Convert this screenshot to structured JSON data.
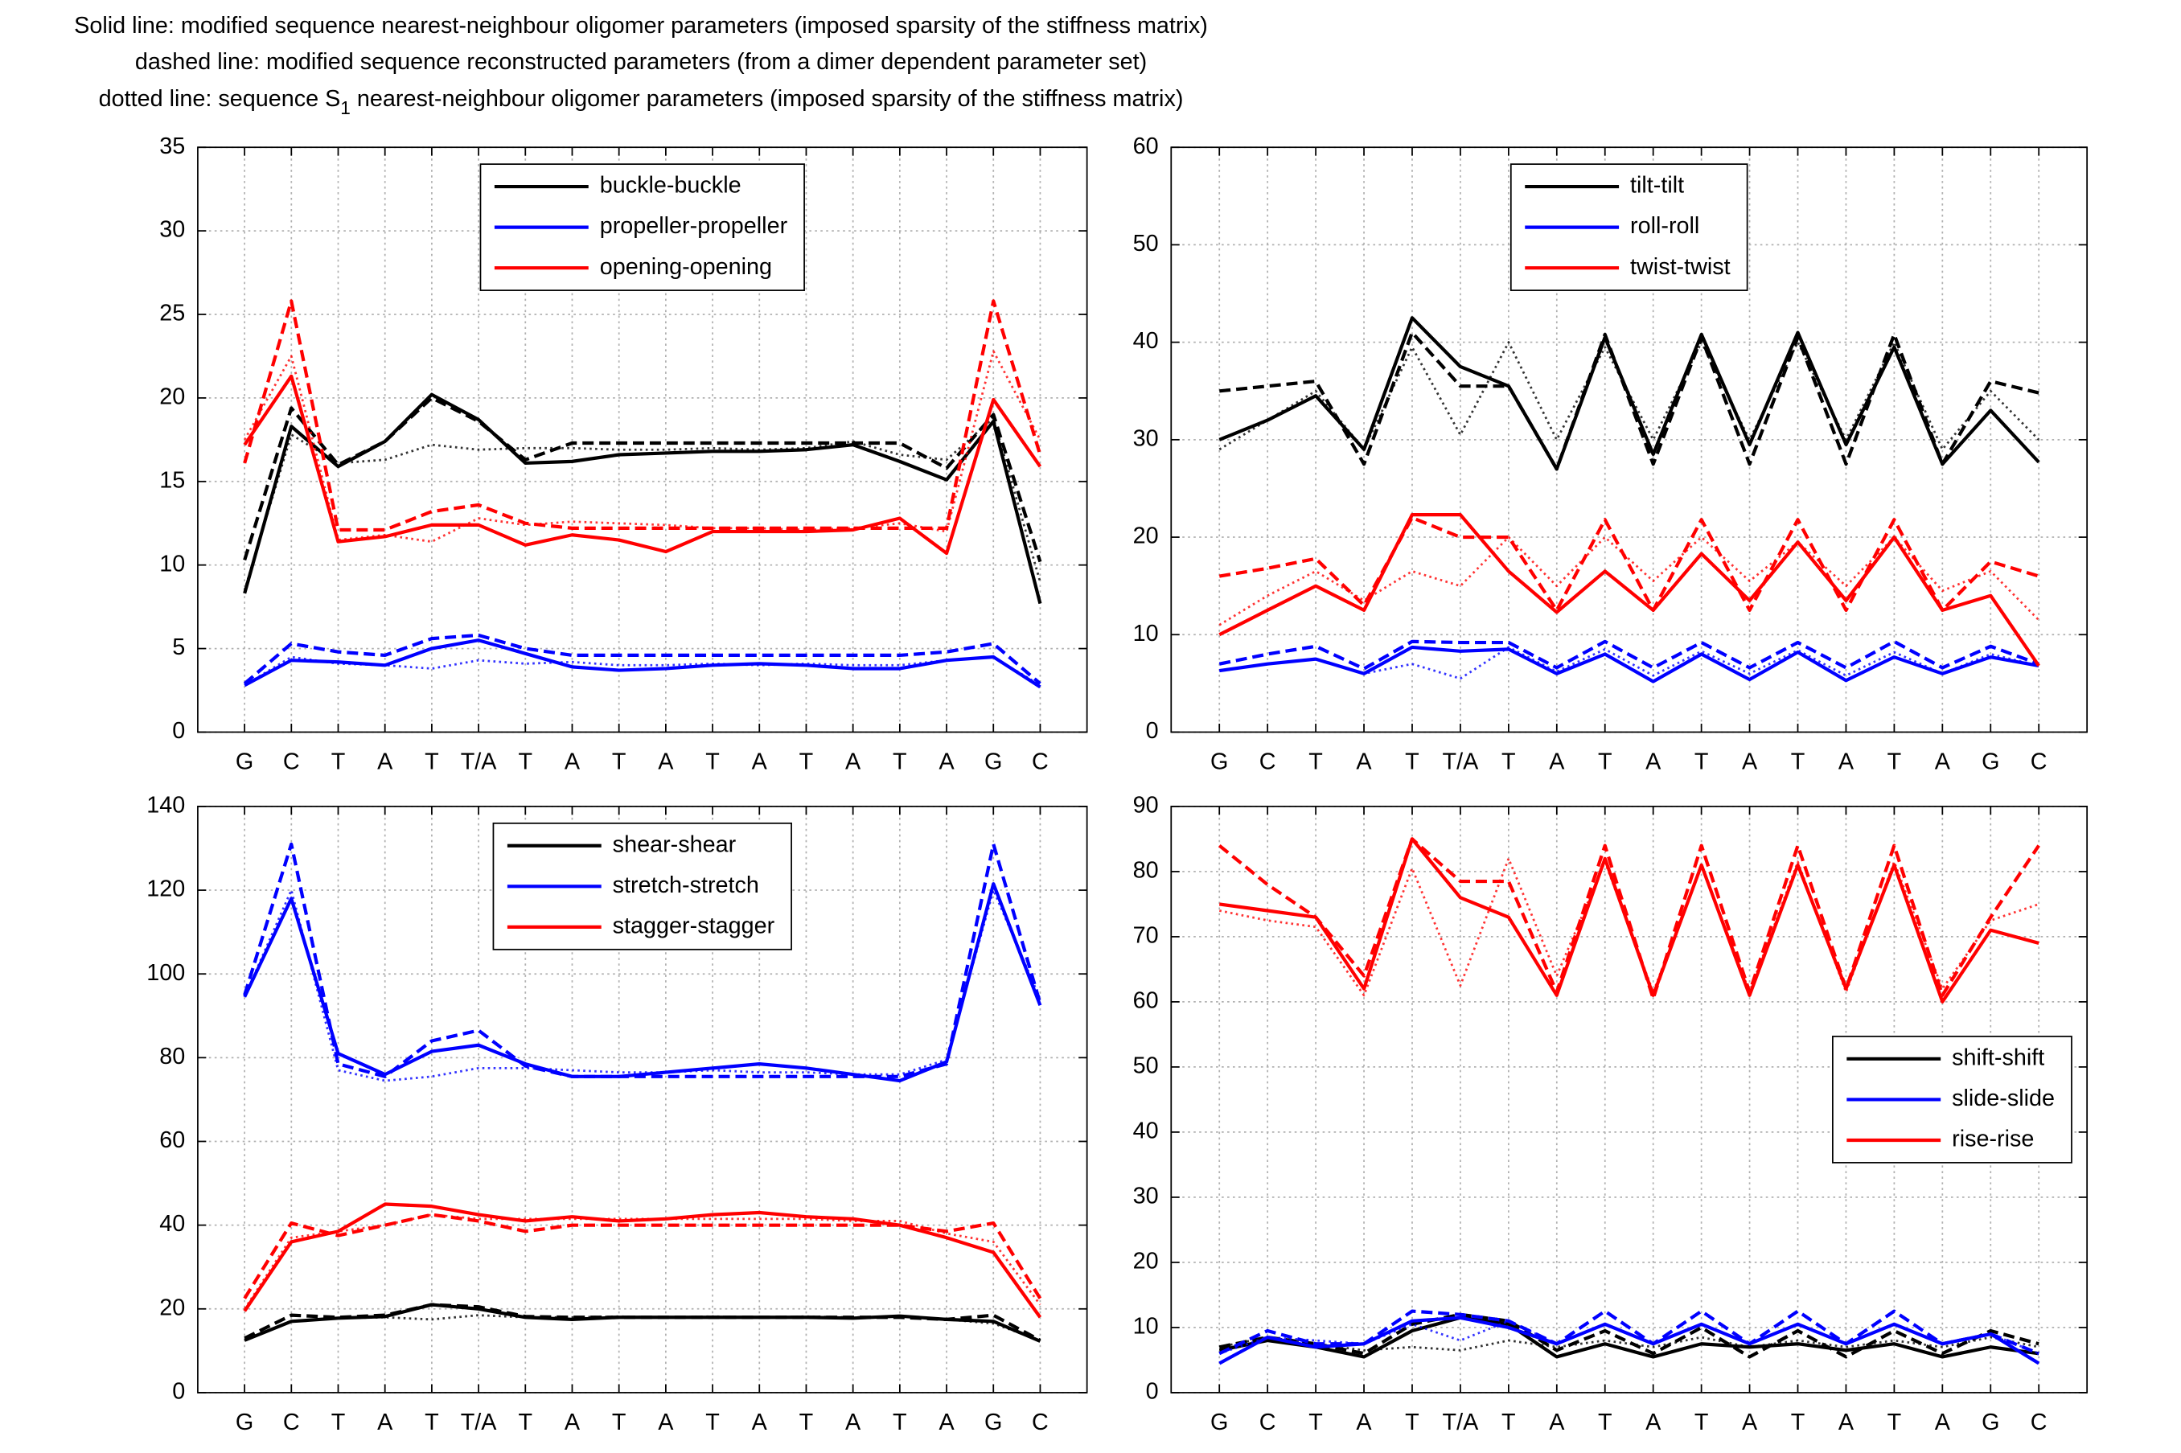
{
  "caption": [
    "Solid line: modified sequence nearest-neighbour oligomer parameters (imposed sparsity of the stiffness matrix)",
    "dashed line: modified sequence reconstructed parameters (from a dimer dependent parameter set)",
    {
      "before": "dotted line: sequence S",
      "subscript": "1",
      "after": " nearest-neighbour oligomer parameters (imposed sparsity of the stiffness matrix)"
    }
  ],
  "chart_data": [
    {
      "type": "line",
      "categories": [
        "G",
        "C",
        "T",
        "A",
        "T",
        "T/A",
        "T",
        "A",
        "T",
        "A",
        "T",
        "A",
        "T",
        "A",
        "T",
        "A",
        "G",
        "C"
      ],
      "ylim": [
        0,
        35
      ],
      "yticks": [
        0,
        5,
        10,
        15,
        20,
        25,
        30,
        35
      ],
      "grid": true,
      "legend": "upper center",
      "series": [
        {
          "name": "buckle-buckle",
          "color": "#000000",
          "values": [
            8.3,
            18.3,
            15.9,
            17.4,
            20.2,
            18.7,
            16.1,
            16.2,
            16.6,
            16.7,
            16.8,
            16.8,
            16.9,
            17.2,
            16.2,
            15.1,
            18.6,
            7.7
          ],
          "dashed_values": [
            10.3,
            19.4,
            16.0,
            17.4,
            20.0,
            18.6,
            16.3,
            17.3,
            17.3,
            17.3,
            17.3,
            17.3,
            17.3,
            17.3,
            17.3,
            15.8,
            19.0,
            10.2
          ],
          "dotted_values": [
            8.5,
            17.8,
            16.1,
            16.3,
            17.2,
            16.9,
            17.0,
            17.0,
            16.9,
            16.9,
            17.0,
            16.9,
            17.0,
            17.4,
            16.6,
            16.3,
            18.8,
            9.0
          ]
        },
        {
          "name": "propeller-propeller",
          "color": "#0000ff",
          "values": [
            2.8,
            4.3,
            4.2,
            4.0,
            5.0,
            5.5,
            4.7,
            3.9,
            3.7,
            3.8,
            4.0,
            4.1,
            4.0,
            3.8,
            3.8,
            4.3,
            4.5,
            2.7
          ],
          "dashed_values": [
            2.9,
            5.3,
            4.8,
            4.6,
            5.6,
            5.8,
            5.0,
            4.6,
            4.6,
            4.6,
            4.6,
            4.6,
            4.6,
            4.6,
            4.6,
            4.8,
            5.3,
            2.9
          ],
          "dotted_values": [
            2.8,
            4.5,
            4.1,
            4.0,
            3.8,
            4.3,
            4.1,
            4.2,
            4.0,
            4.0,
            4.1,
            4.0,
            4.1,
            4.0,
            4.0,
            4.3,
            4.5,
            2.8
          ]
        },
        {
          "name": "opening-opening",
          "color": "#ff0000",
          "values": [
            17.2,
            21.3,
            11.4,
            11.7,
            12.4,
            12.4,
            11.2,
            11.8,
            11.5,
            10.8,
            12.0,
            12.0,
            12.0,
            12.1,
            12.8,
            10.7,
            19.9,
            15.9
          ],
          "dashed_values": [
            16.1,
            25.8,
            12.1,
            12.1,
            13.2,
            13.6,
            12.5,
            12.2,
            12.2,
            12.2,
            12.2,
            12.2,
            12.2,
            12.2,
            12.2,
            12.2,
            25.8,
            16.6
          ],
          "dotted_values": [
            17.5,
            22.5,
            11.5,
            11.8,
            11.4,
            12.8,
            12.4,
            12.6,
            12.5,
            12.4,
            12.2,
            12.2,
            12.1,
            12.2,
            12.5,
            12.0,
            22.8,
            17.5
          ]
        }
      ]
    },
    {
      "type": "line",
      "categories": [
        "G",
        "C",
        "T",
        "A",
        "T",
        "T/A",
        "T",
        "A",
        "T",
        "A",
        "T",
        "A",
        "T",
        "A",
        "T",
        "A",
        "G",
        "C"
      ],
      "ylim": [
        0,
        60
      ],
      "yticks": [
        0,
        10,
        20,
        30,
        40,
        50,
        60
      ],
      "grid": true,
      "legend": "upper center",
      "series": [
        {
          "name": "tilt-tilt",
          "color": "#000000",
          "values": [
            30,
            32,
            34.5,
            29,
            42.5,
            37.5,
            35.5,
            27,
            40.5,
            28.5,
            40.8,
            29.5,
            41,
            29.5,
            39.5,
            27.5,
            33,
            27.7
          ],
          "dashed_values": [
            35,
            35.5,
            36,
            27.5,
            41,
            35.5,
            35.5,
            27,
            40.8,
            27.5,
            40.5,
            27.5,
            40.5,
            27.5,
            40.8,
            27.5,
            36,
            34.8
          ],
          "dotted_values": [
            29,
            32,
            35,
            29,
            39.5,
            30.5,
            40,
            30,
            39.5,
            30,
            40,
            30,
            40,
            30,
            40,
            29,
            35,
            30
          ]
        },
        {
          "name": "roll-roll",
          "color": "#0000ff",
          "values": [
            6.3,
            7.0,
            7.5,
            6.0,
            8.7,
            8.3,
            8.5,
            6.0,
            8.0,
            5.2,
            8.0,
            5.4,
            8.2,
            5.3,
            7.7,
            6.0,
            7.7,
            6.8
          ],
          "dashed_values": [
            7.0,
            8.0,
            8.8,
            6.5,
            9.3,
            9.2,
            9.2,
            6.6,
            9.3,
            6.6,
            9.2,
            6.6,
            9.2,
            6.6,
            9.3,
            6.6,
            8.8,
            7.0
          ],
          "dotted_values": [
            6.3,
            7.0,
            7.5,
            6.0,
            7.0,
            5.5,
            8.7,
            6.2,
            8.5,
            5.8,
            8.3,
            6.0,
            8.4,
            5.8,
            8.2,
            6.0,
            8.0,
            6.8
          ]
        },
        {
          "name": "twist-twist",
          "color": "#ff0000",
          "values": [
            10,
            12.5,
            15,
            12.5,
            22.3,
            22.3,
            16.5,
            12.3,
            16.5,
            12.5,
            18.3,
            13.5,
            19.5,
            13.5,
            20,
            12.5,
            14,
            6.8
          ],
          "dashed_values": [
            16,
            16.8,
            17.8,
            13,
            22,
            20,
            20,
            12.5,
            21.8,
            12.5,
            21.8,
            12.5,
            21.8,
            12.5,
            21.8,
            12.5,
            17.5,
            16
          ],
          "dotted_values": [
            11,
            14,
            16.5,
            13.5,
            16.5,
            15,
            20,
            15,
            20,
            15.5,
            20,
            15.5,
            19.5,
            15,
            20,
            14.5,
            16.5,
            11.5
          ]
        }
      ]
    },
    {
      "type": "line",
      "categories": [
        "G",
        "C",
        "T",
        "A",
        "T",
        "T/A",
        "T",
        "A",
        "T",
        "A",
        "T",
        "A",
        "T",
        "A",
        "T",
        "A",
        "G",
        "C"
      ],
      "ylim": [
        0,
        140
      ],
      "yticks": [
        0,
        20,
        40,
        60,
        80,
        100,
        120,
        140
      ],
      "grid": true,
      "legend": "upper center",
      "series": [
        {
          "name": "shear-shear",
          "color": "#000000",
          "values": [
            12.5,
            17,
            17.8,
            18.2,
            21,
            20,
            18,
            17.5,
            18,
            18,
            18,
            18,
            18,
            17.8,
            18.3,
            17.5,
            17,
            12.3
          ],
          "dashed_values": [
            13,
            18.5,
            18,
            18.5,
            21,
            20.5,
            18.2,
            18,
            18,
            18,
            18,
            18,
            18,
            18,
            18,
            17.5,
            18.5,
            12.5
          ],
          "dotted_values": [
            12.5,
            17,
            17.8,
            18,
            17.5,
            18.5,
            18,
            18,
            18.2,
            18,
            18.2,
            18,
            18.2,
            18,
            18.2,
            17.5,
            16.5,
            12.5
          ]
        },
        {
          "name": "stretch-stretch",
          "color": "#0000ff",
          "values": [
            94.5,
            118,
            81,
            76,
            81.5,
            83,
            78.5,
            75.5,
            75.5,
            76.5,
            77.5,
            78.5,
            77.5,
            76,
            74.5,
            79,
            121.5,
            92.5
          ],
          "dashed_values": [
            95,
            131,
            78.5,
            75.5,
            84,
            86.5,
            78,
            75.5,
            75.5,
            75.5,
            75.5,
            75.5,
            75.5,
            75.5,
            75.5,
            78.5,
            131,
            93
          ],
          "dotted_values": [
            94.5,
            120,
            77,
            74.5,
            75.5,
            77.5,
            77.5,
            77,
            76.5,
            76.5,
            77,
            76.5,
            76.5,
            76,
            76,
            79.5,
            120,
            94
          ]
        },
        {
          "name": "stagger-stagger",
          "color": "#ff0000",
          "values": [
            19.5,
            36,
            38.5,
            45,
            44.5,
            42.5,
            41,
            42,
            41,
            41.5,
            42.5,
            43,
            42,
            41.5,
            40,
            37,
            33.5,
            18
          ],
          "dashed_values": [
            22.5,
            40.5,
            37.5,
            40,
            42.5,
            41,
            38.5,
            40,
            40,
            40,
            40,
            40,
            40,
            40,
            40,
            38.5,
            40.5,
            22.5
          ],
          "dotted_values": [
            20,
            37,
            38.5,
            40,
            42.5,
            41.5,
            41.5,
            41.5,
            41.5,
            41.5,
            41.5,
            41.5,
            41.5,
            41,
            41,
            38,
            36,
            21
          ]
        }
      ]
    },
    {
      "type": "line",
      "categories": [
        "G",
        "C",
        "T",
        "A",
        "T",
        "T/A",
        "T",
        "A",
        "T",
        "A",
        "T",
        "A",
        "T",
        "A",
        "T",
        "A",
        "G",
        "C"
      ],
      "ylim": [
        0,
        90
      ],
      "yticks": [
        0,
        10,
        20,
        30,
        40,
        50,
        60,
        70,
        80,
        90
      ],
      "grid": true,
      "legend": "center right",
      "series": [
        {
          "name": "shift-shift",
          "color": "#000000",
          "values": [
            6.5,
            8,
            7,
            5.5,
            9.5,
            11.5,
            10.5,
            5.5,
            7.5,
            5.5,
            7.5,
            7,
            7.5,
            6.5,
            7.5,
            5.5,
            7,
            6
          ],
          "dashed_values": [
            7,
            8.5,
            7.5,
            6,
            10.5,
            12,
            11,
            6.5,
            9.5,
            6,
            10,
            5.5,
            9.5,
            5.5,
            9.5,
            6,
            9.5,
            7.5
          ],
          "dotted_values": [
            7,
            8.5,
            7.5,
            6.5,
            7,
            6.5,
            8,
            7,
            8,
            7,
            8.5,
            7,
            8,
            7,
            8,
            7,
            8.5,
            7
          ]
        },
        {
          "name": "slide-slide",
          "color": "#0000ff",
          "values": [
            4.5,
            8.5,
            7,
            7.5,
            11,
            11.5,
            10,
            7.5,
            10.5,
            7.5,
            10.5,
            7.5,
            10.5,
            7.5,
            10.5,
            7.5,
            9,
            4.5
          ],
          "dashed_values": [
            6,
            9.5,
            7.5,
            7.5,
            12.5,
            12,
            11,
            7.5,
            12.5,
            7.5,
            12.5,
            7.5,
            12.5,
            7.5,
            12.5,
            7.5,
            9,
            6
          ],
          "dotted_values": [
            6,
            8.5,
            8,
            7.5,
            10.5,
            8,
            11,
            7.5,
            10.5,
            7.5,
            10.5,
            7.5,
            10.5,
            7.5,
            10.5,
            7.5,
            9,
            6
          ]
        },
        {
          "name": "rise-rise",
          "color": "#ff0000",
          "values": [
            75,
            74,
            73,
            62,
            85,
            76,
            73,
            61,
            82,
            61,
            81,
            61,
            81,
            62,
            81,
            60,
            71,
            69
          ],
          "dashed_values": [
            84,
            78,
            73,
            64,
            85,
            78.5,
            78.5,
            61.5,
            84,
            60.5,
            84,
            61.5,
            84,
            62,
            84,
            61,
            73,
            84
          ],
          "dotted_values": [
            74,
            72.5,
            71.5,
            61,
            80.5,
            62.5,
            82,
            64,
            81.5,
            61.5,
            81,
            61.5,
            81.5,
            61.5,
            81.5,
            62,
            72.5,
            75
          ]
        }
      ]
    }
  ]
}
